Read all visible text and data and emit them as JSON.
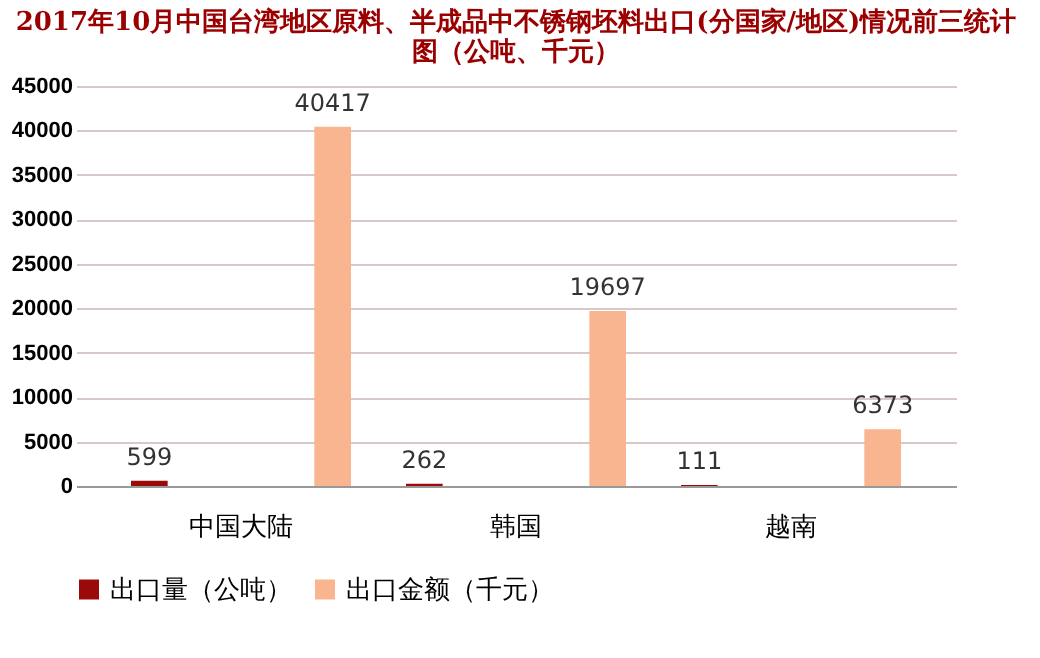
{
  "chart_data": {
    "type": "bar",
    "title": [
      "2017年10月中国台湾地区原料、半成品中不锈钢坯料出口(分国家/地区)情况前三统计",
      "图（公吨、千元）"
    ],
    "categories": [
      "中国大陆",
      "韩国",
      "越南"
    ],
    "series": [
      {
        "name": "出口量（公吨）",
        "color": "#9b0a0a",
        "values": [
          599,
          262,
          111
        ]
      },
      {
        "name": "出口金额（千元）",
        "color": "#f8b58f",
        "values": [
          40417,
          19697,
          6373
        ]
      }
    ],
    "ylim": [
      0,
      45000
    ],
    "yticks": [
      0,
      5000,
      10000,
      15000,
      20000,
      25000,
      30000,
      35000,
      40000,
      45000
    ],
    "grid": "y",
    "legend": "bottom",
    "data_labels": true
  }
}
